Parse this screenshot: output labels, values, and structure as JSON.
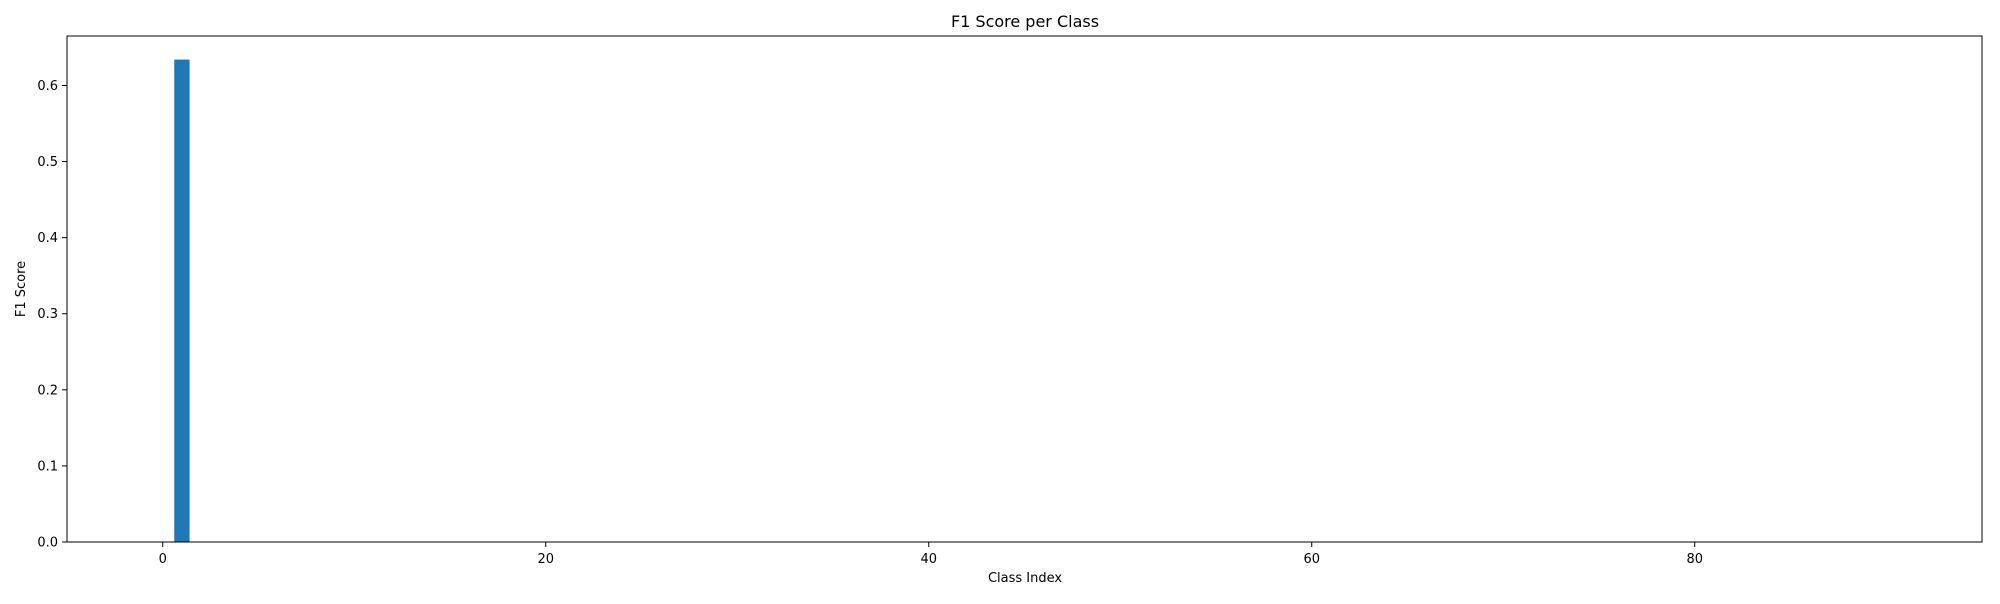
{
  "chart_data": {
    "type": "bar",
    "title": "F1 Score per Class",
    "xlabel": "Class Index",
    "ylabel": "F1 Score",
    "xlim": [
      -5,
      95
    ],
    "ylim": [
      0,
      0.665
    ],
    "x_ticks": [
      0,
      20,
      40,
      60,
      80
    ],
    "x_tick_labels": [
      "0",
      "20",
      "40",
      "60",
      "80"
    ],
    "y_ticks": [
      0.0,
      0.1,
      0.2,
      0.3,
      0.4,
      0.5,
      0.6
    ],
    "y_tick_labels": [
      "0.0",
      "0.1",
      "0.2",
      "0.3",
      "0.4",
      "0.5",
      "0.6"
    ],
    "bar_width": 0.8,
    "grid": false,
    "bar_color": "#1f77b4",
    "bars": [
      {
        "x": 1,
        "value": 0.634
      }
    ]
  }
}
